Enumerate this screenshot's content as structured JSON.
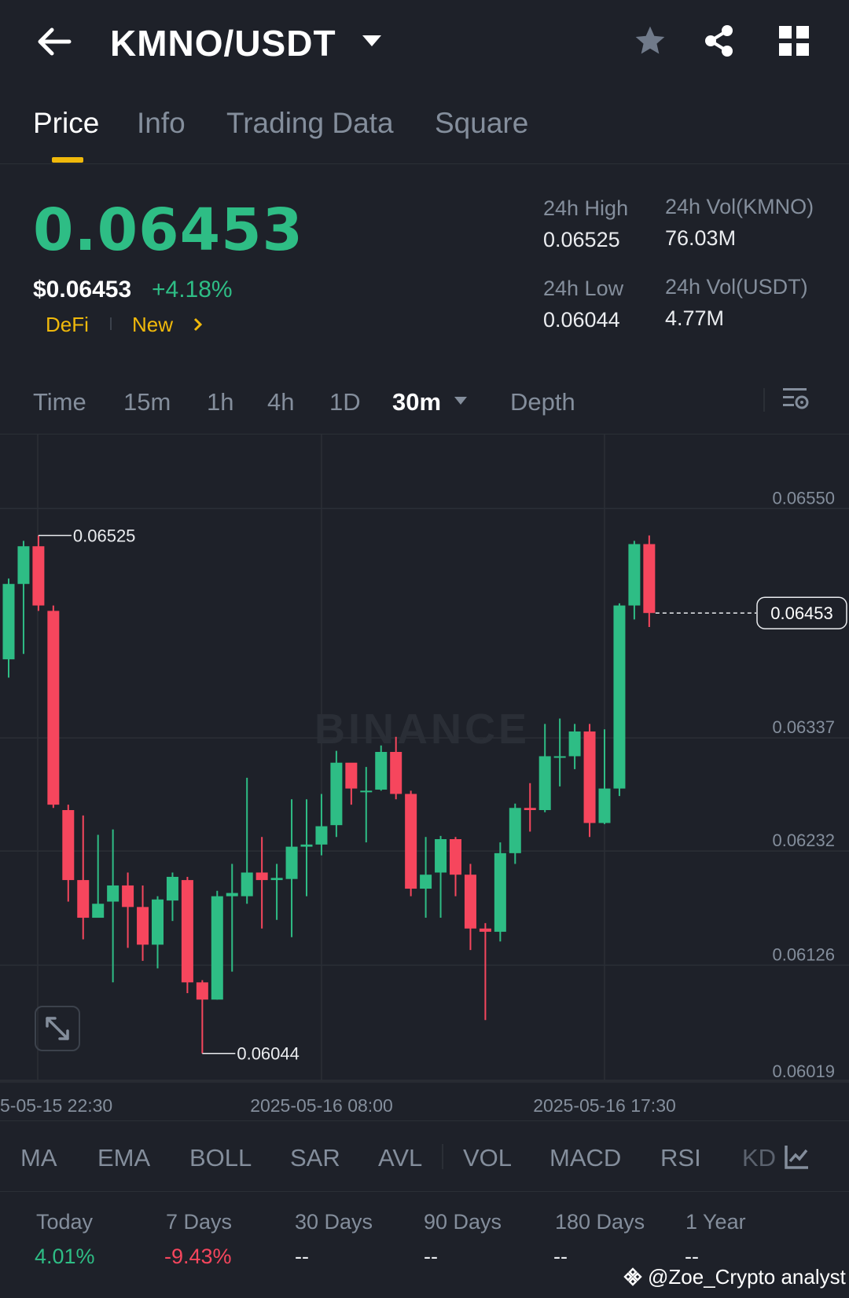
{
  "header": {
    "pair": "KMNO/USDT"
  },
  "tabs": [
    {
      "label": "Price"
    },
    {
      "label": "Info"
    },
    {
      "label": "Trading Data"
    },
    {
      "label": "Square"
    }
  ],
  "ticker": {
    "last_price": "0.06453",
    "usd_price": "$0.06453",
    "change_pct": "+4.18%",
    "tags": [
      "DeFi",
      "New"
    ],
    "stats": {
      "high_label": "24h High",
      "high": "0.06525",
      "low_label": "24h Low",
      "low": "0.06044",
      "vol_base_label": "24h Vol(KMNO)",
      "vol_base": "76.03M",
      "vol_quote_label": "24h Vol(USDT)",
      "vol_quote": "4.77M"
    }
  },
  "timeframes": {
    "items": [
      "Time",
      "15m",
      "1h",
      "4h",
      "1D"
    ],
    "selected": "30m",
    "depth": "Depth"
  },
  "chart_data": {
    "type": "candlestick",
    "interval": "30m",
    "y_ticks": [
      "0.06550",
      "0.06337",
      "0.06232",
      "0.06126",
      "0.06019"
    ],
    "x_ticks": [
      "5-05-15 22:30",
      "2025-05-16 08:00",
      "2025-05-16 17:30"
    ],
    "ylim": [
      0.06019,
      0.06575
    ],
    "high_marker": "0.06525",
    "low_marker": "0.06044",
    "current_price_label": "0.06453",
    "watermark": "BINANCE",
    "candles": [
      {
        "o": 0.0641,
        "c": 0.0648,
        "h": 0.06485,
        "l": 0.06393
      },
      {
        "o": 0.0648,
        "c": 0.06515,
        "h": 0.0652,
        "l": 0.06415
      },
      {
        "o": 0.06515,
        "c": 0.0646,
        "h": 0.06525,
        "l": 0.06455
      },
      {
        "o": 0.06455,
        "c": 0.06275,
        "h": 0.0646,
        "l": 0.06272
      },
      {
        "o": 0.0627,
        "c": 0.06205,
        "h": 0.06275,
        "l": 0.06185
      },
      {
        "o": 0.06205,
        "c": 0.0617,
        "h": 0.06265,
        "l": 0.0615
      },
      {
        "o": 0.0617,
        "c": 0.06183,
        "h": 0.06247,
        "l": 0.06174
      },
      {
        "o": 0.06185,
        "c": 0.062,
        "h": 0.06252,
        "l": 0.0611
      },
      {
        "o": 0.062,
        "c": 0.0618,
        "h": 0.06212,
        "l": 0.06142
      },
      {
        "o": 0.0618,
        "c": 0.06145,
        "h": 0.062,
        "l": 0.0613
      },
      {
        "o": 0.06145,
        "c": 0.06187,
        "h": 0.0619,
        "l": 0.06123
      },
      {
        "o": 0.06186,
        "c": 0.06208,
        "h": 0.06212,
        "l": 0.06167
      },
      {
        "o": 0.06205,
        "c": 0.0611,
        "h": 0.06208,
        "l": 0.061
      },
      {
        "o": 0.0611,
        "c": 0.06094,
        "h": 0.06112,
        "l": 0.06044
      },
      {
        "o": 0.06094,
        "c": 0.0619,
        "h": 0.06195,
        "l": 0.06094
      },
      {
        "o": 0.0619,
        "c": 0.06193,
        "h": 0.0622,
        "l": 0.0612
      },
      {
        "o": 0.0619,
        "c": 0.06212,
        "h": 0.063,
        "l": 0.06183
      },
      {
        "o": 0.06212,
        "c": 0.06205,
        "h": 0.06245,
        "l": 0.0616
      },
      {
        "o": 0.06205,
        "c": 0.06207,
        "h": 0.0622,
        "l": 0.06168
      },
      {
        "o": 0.06206,
        "c": 0.06236,
        "h": 0.0628,
        "l": 0.06152
      },
      {
        "o": 0.06236,
        "c": 0.06238,
        "h": 0.0628,
        "l": 0.0619
      },
      {
        "o": 0.06238,
        "c": 0.06255,
        "h": 0.06285,
        "l": 0.06228
      },
      {
        "o": 0.06256,
        "c": 0.06314,
        "h": 0.06325,
        "l": 0.06245
      },
      {
        "o": 0.06314,
        "c": 0.0629,
        "h": 0.0631,
        "l": 0.06275
      },
      {
        "o": 0.06288,
        "c": 0.06288,
        "h": 0.0631,
        "l": 0.0624
      },
      {
        "o": 0.06289,
        "c": 0.06324,
        "h": 0.0633,
        "l": 0.06288
      },
      {
        "o": 0.06324,
        "c": 0.06285,
        "h": 0.06338,
        "l": 0.0628
      },
      {
        "o": 0.06285,
        "c": 0.06197,
        "h": 0.06288,
        "l": 0.0619
      },
      {
        "o": 0.06197,
        "c": 0.0621,
        "h": 0.06245,
        "l": 0.0617
      },
      {
        "o": 0.06212,
        "c": 0.06243,
        "h": 0.06246,
        "l": 0.0617
      },
      {
        "o": 0.06243,
        "c": 0.0621,
        "h": 0.06245,
        "l": 0.0619
      },
      {
        "o": 0.0621,
        "c": 0.0616,
        "h": 0.0622,
        "l": 0.0614
      },
      {
        "o": 0.0616,
        "c": 0.06157,
        "h": 0.06165,
        "l": 0.06075
      },
      {
        "o": 0.06157,
        "c": 0.0623,
        "h": 0.0624,
        "l": 0.06148
      },
      {
        "o": 0.0623,
        "c": 0.06272,
        "h": 0.06276,
        "l": 0.0622
      },
      {
        "o": 0.06272,
        "c": 0.0627,
        "h": 0.06295,
        "l": 0.0625
      },
      {
        "o": 0.0627,
        "c": 0.0632,
        "h": 0.0635,
        "l": 0.06268
      },
      {
        "o": 0.0632,
        "c": 0.0632,
        "h": 0.06355,
        "l": 0.06292
      },
      {
        "o": 0.0632,
        "c": 0.06343,
        "h": 0.0635,
        "l": 0.06308
      },
      {
        "o": 0.06343,
        "c": 0.06258,
        "h": 0.0635,
        "l": 0.06245
      },
      {
        "o": 0.06258,
        "c": 0.0629,
        "h": 0.06345,
        "l": 0.06257
      },
      {
        "o": 0.0629,
        "c": 0.0646,
        "h": 0.06462,
        "l": 0.06283
      },
      {
        "o": 0.0646,
        "c": 0.06517,
        "h": 0.0652,
        "l": 0.06447
      },
      {
        "o": 0.06517,
        "c": 0.06453,
        "h": 0.06525,
        "l": 0.0644
      }
    ]
  },
  "indicators": {
    "main": [
      "MA",
      "EMA",
      "BOLL",
      "SAR",
      "AVL"
    ],
    "sub": [
      "VOL",
      "MACD",
      "RSI",
      "KD"
    ]
  },
  "periods": [
    {
      "label": "Today",
      "value": "4.01%",
      "color": "#2ebd85"
    },
    {
      "label": "7 Days",
      "value": "-9.43%",
      "color": "#f6465d"
    },
    {
      "label": "30 Days",
      "value": "--",
      "color": "#eaecef"
    },
    {
      "label": "90 Days",
      "value": "--",
      "color": "#eaecef"
    },
    {
      "label": "180 Days",
      "value": "--",
      "color": "#eaecef"
    },
    {
      "label": "1 Year",
      "value": "--",
      "color": "#eaecef"
    }
  ],
  "credit": "@Zoe_Crypto analyst",
  "colors": {
    "up": "#2ebd85",
    "down": "#f6465d",
    "accent": "#f0b90b",
    "bg": "#1e2129"
  }
}
